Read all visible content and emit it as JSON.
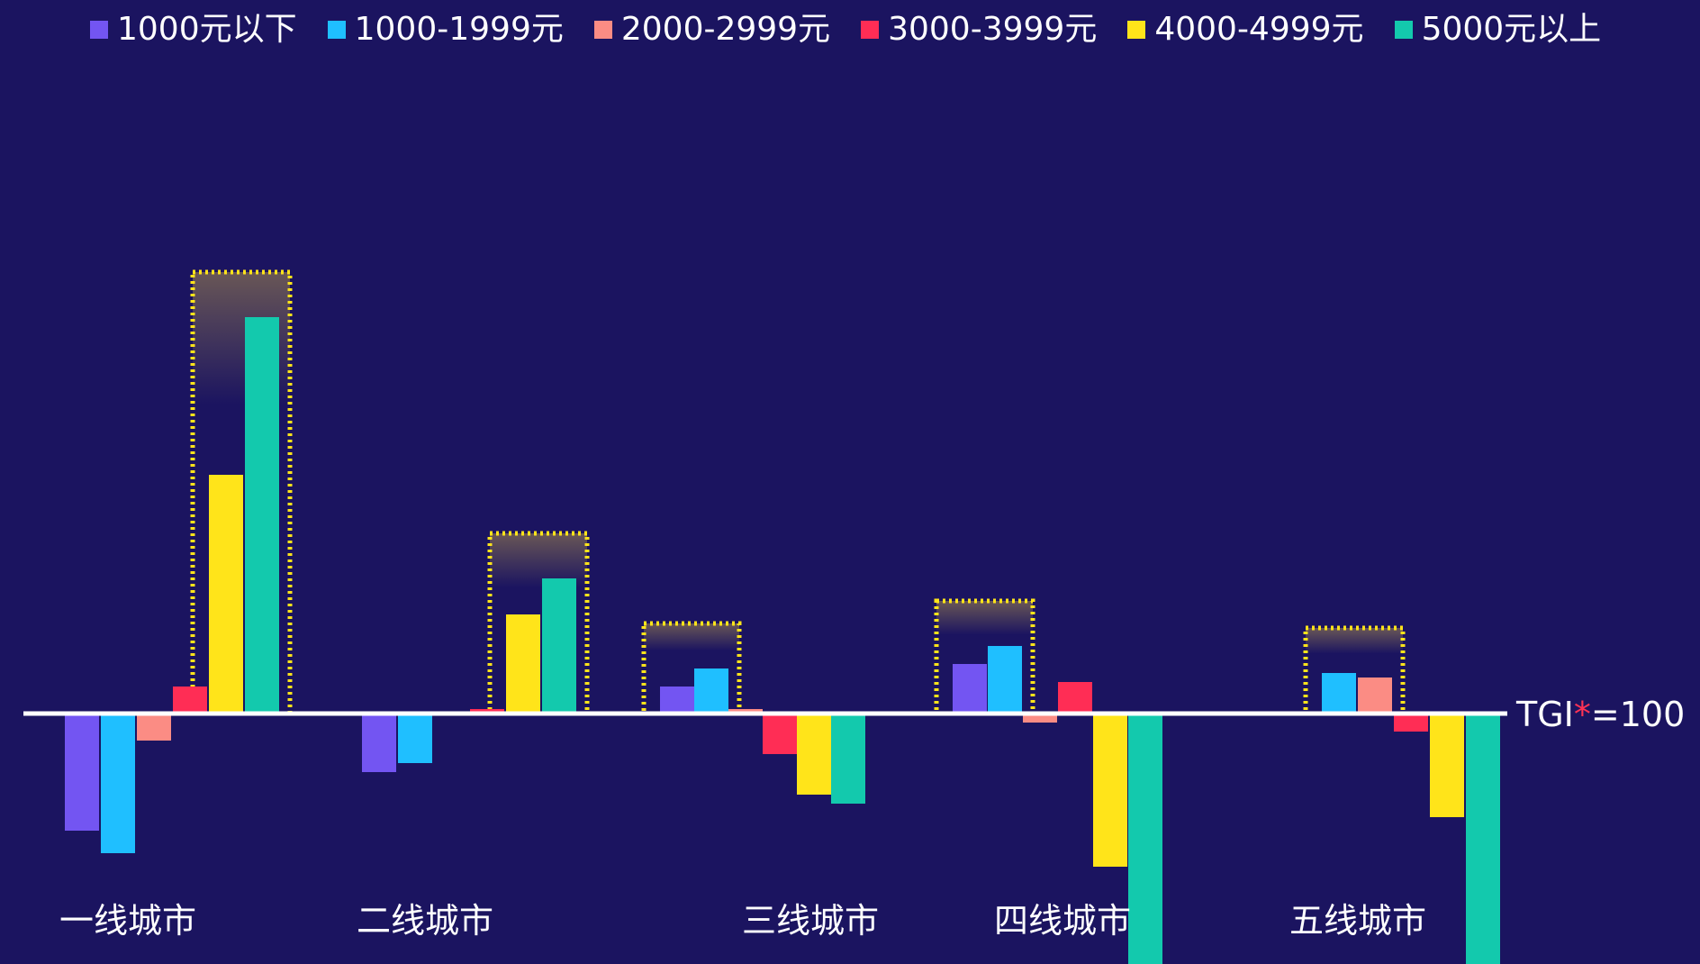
{
  "chart_data": {
    "type": "bar",
    "title": "",
    "xlabel": "",
    "ylabel": "",
    "baseline": 100,
    "baseline_label": {
      "prefix": "TGI",
      "star": "*",
      "suffix": "=100"
    },
    "categories": [
      "一线城市",
      "二线城市",
      "三线城市",
      "四线城市",
      "五线城市"
    ],
    "series": [
      {
        "name": "1000元以下",
        "color": "#7355f2",
        "values": [
          74,
          87,
          106,
          111,
          100
        ]
      },
      {
        "name": "1000-1999元",
        "color": "#1fbfff",
        "values": [
          69,
          89,
          110,
          115,
          109
        ]
      },
      {
        "name": "2000-2999元",
        "color": "#fb8c84",
        "values": [
          94,
          100,
          101,
          98,
          108
        ]
      },
      {
        "name": "3000-3999元",
        "color": "#ff2d55",
        "values": [
          106,
          101,
          91,
          107,
          96
        ]
      },
      {
        "name": "4000-4999元",
        "color": "#ffe41a",
        "values": [
          153,
          122,
          82,
          66,
          77
        ]
      },
      {
        "name": "5000元以上",
        "color": "#13c9ad",
        "values": [
          188,
          130,
          80,
          42,
          42
        ]
      }
    ],
    "highlight_groups": [
      [
        4,
        5
      ],
      [
        4,
        5
      ],
      [
        0,
        1
      ],
      [
        0,
        1
      ],
      [
        1,
        2
      ]
    ],
    "legend_position": "top",
    "grid": false
  }
}
